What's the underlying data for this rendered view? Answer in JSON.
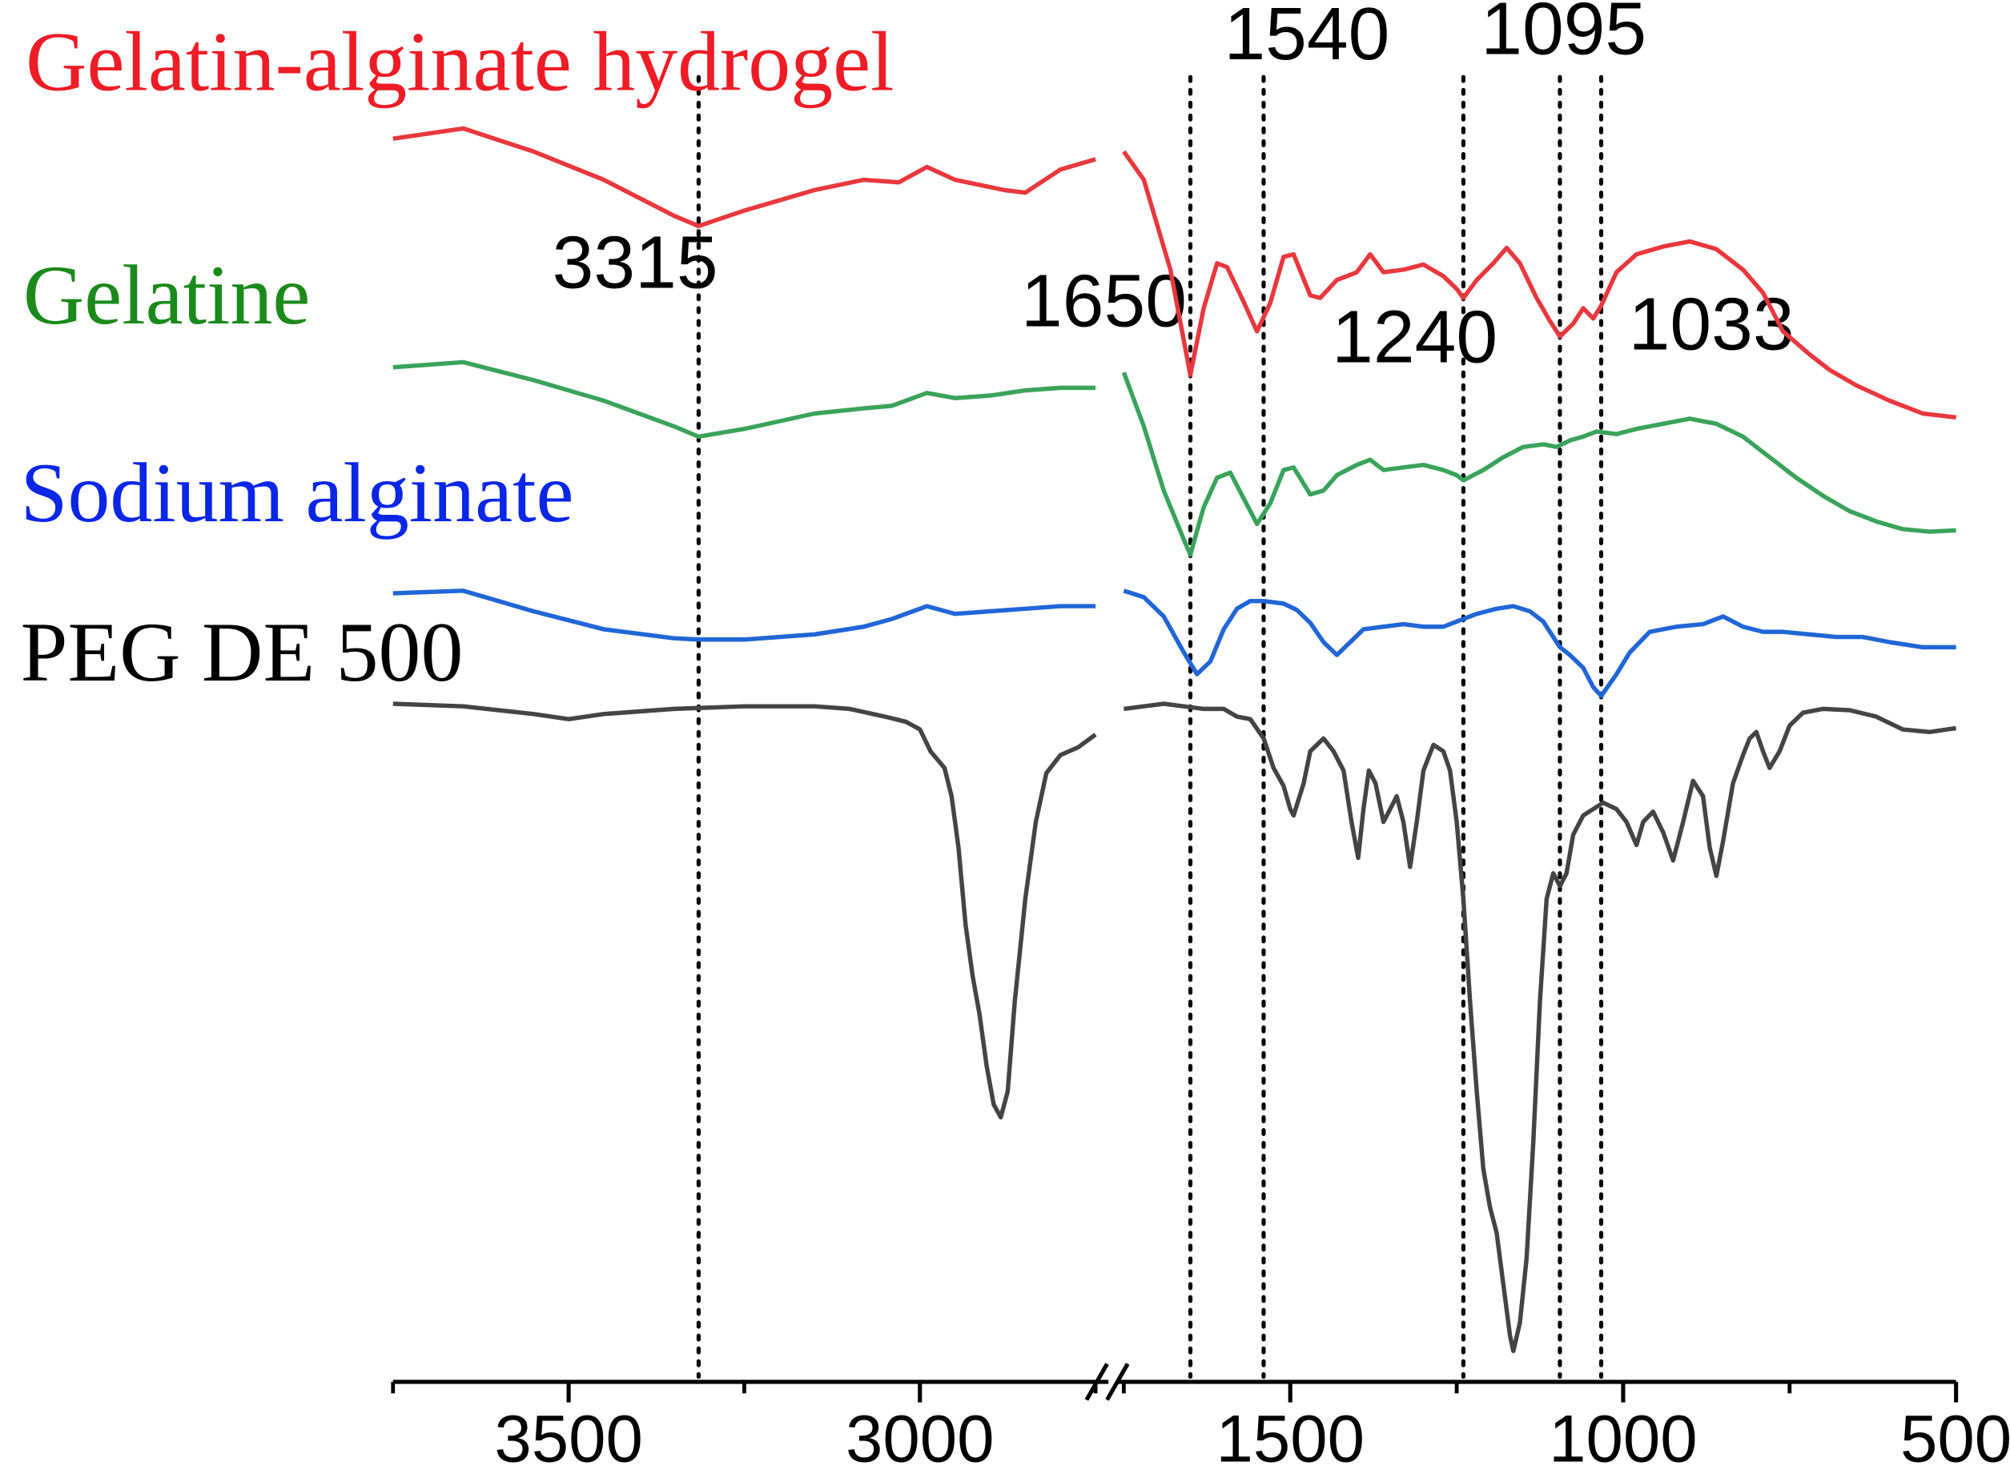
{
  "chart_data": {
    "type": "line",
    "title": "",
    "xlabel": "",
    "ylabel": "",
    "x_axis": {
      "reversed": true,
      "broken": true,
      "segments": [
        [
          3750,
          2750
        ],
        [
          1750,
          500
        ]
      ],
      "ticks": [
        3500,
        3000,
        1500,
        1000,
        500
      ],
      "minor_ticks": [
        3750,
        3250,
        2750,
        1750,
        1250,
        750
      ],
      "tick_labels": [
        "3500",
        "3000",
        "1500",
        "1000",
        "500"
      ]
    },
    "peaks": [
      {
        "x": 3315,
        "label": "3315"
      },
      {
        "x": 1650,
        "label": "1650"
      },
      {
        "x": 1540,
        "label": "1540"
      },
      {
        "x": 1240,
        "label": "1240"
      },
      {
        "x": 1095,
        "label": "1095"
      },
      {
        "x": 1033,
        "label": "1033"
      }
    ],
    "series": [
      {
        "name": "Gelatin-alginate hydrogel",
        "color": "#e8383d",
        "label_color": "#ee1c25",
        "points": [
          [
            3750,
            108
          ],
          [
            3650,
            100
          ],
          [
            3550,
            118
          ],
          [
            3450,
            140
          ],
          [
            3350,
            168
          ],
          [
            3315,
            176
          ],
          [
            3250,
            164
          ],
          [
            3150,
            148
          ],
          [
            3080,
            140
          ],
          [
            3030,
            142
          ],
          [
            2990,
            130
          ],
          [
            2950,
            140
          ],
          [
            2880,
            148
          ],
          [
            2850,
            150
          ],
          [
            2800,
            132
          ],
          [
            2750,
            124
          ],
          [
            1750,
            118
          ],
          [
            1720,
            140
          ],
          [
            1680,
            210
          ],
          [
            1660,
            265
          ],
          [
            1650,
            292
          ],
          [
            1630,
            240
          ],
          [
            1610,
            205
          ],
          [
            1595,
            208
          ],
          [
            1570,
            235
          ],
          [
            1550,
            258
          ],
          [
            1530,
            236
          ],
          [
            1510,
            200
          ],
          [
            1495,
            198
          ],
          [
            1470,
            230
          ],
          [
            1455,
            232
          ],
          [
            1430,
            218
          ],
          [
            1400,
            212
          ],
          [
            1380,
            198
          ],
          [
            1360,
            212
          ],
          [
            1330,
            210
          ],
          [
            1300,
            206
          ],
          [
            1270,
            215
          ],
          [
            1250,
            225
          ],
          [
            1240,
            232
          ],
          [
            1220,
            218
          ],
          [
            1195,
            205
          ],
          [
            1175,
            193
          ],
          [
            1155,
            205
          ],
          [
            1130,
            232
          ],
          [
            1110,
            250
          ],
          [
            1095,
            262
          ],
          [
            1075,
            252
          ],
          [
            1060,
            240
          ],
          [
            1045,
            248
          ],
          [
            1033,
            238
          ],
          [
            1010,
            212
          ],
          [
            980,
            198
          ],
          [
            940,
            192
          ],
          [
            900,
            188
          ],
          [
            860,
            194
          ],
          [
            820,
            210
          ],
          [
            790,
            228
          ],
          [
            760,
            258
          ],
          [
            720,
            276
          ],
          [
            690,
            288
          ],
          [
            650,
            300
          ],
          [
            600,
            312
          ],
          [
            550,
            322
          ],
          [
            500,
            325
          ]
        ]
      },
      {
        "name": "Gelatine",
        "color": "#3aa35b",
        "label_color": "#1a8a1a",
        "points": [
          [
            3750,
            286
          ],
          [
            3650,
            282
          ],
          [
            3550,
            296
          ],
          [
            3450,
            312
          ],
          [
            3350,
            332
          ],
          [
            3315,
            340
          ],
          [
            3250,
            334
          ],
          [
            3150,
            322
          ],
          [
            3080,
            318
          ],
          [
            3040,
            316
          ],
          [
            2990,
            306
          ],
          [
            2950,
            310
          ],
          [
            2900,
            308
          ],
          [
            2850,
            304
          ],
          [
            2800,
            302
          ],
          [
            2750,
            302
          ],
          [
            1750,
            290
          ],
          [
            1720,
            332
          ],
          [
            1690,
            382
          ],
          [
            1660,
            420
          ],
          [
            1650,
            432
          ],
          [
            1630,
            395
          ],
          [
            1610,
            372
          ],
          [
            1590,
            368
          ],
          [
            1570,
            388
          ],
          [
            1550,
            408
          ],
          [
            1530,
            392
          ],
          [
            1510,
            366
          ],
          [
            1495,
            364
          ],
          [
            1470,
            385
          ],
          [
            1450,
            382
          ],
          [
            1430,
            370
          ],
          [
            1400,
            362
          ],
          [
            1380,
            358
          ],
          [
            1360,
            366
          ],
          [
            1330,
            364
          ],
          [
            1300,
            362
          ],
          [
            1270,
            366
          ],
          [
            1250,
            370
          ],
          [
            1240,
            374
          ],
          [
            1210,
            366
          ],
          [
            1180,
            356
          ],
          [
            1150,
            348
          ],
          [
            1120,
            346
          ],
          [
            1100,
            348
          ],
          [
            1080,
            343
          ],
          [
            1060,
            340
          ],
          [
            1040,
            336
          ],
          [
            1010,
            338
          ],
          [
            980,
            334
          ],
          [
            940,
            330
          ],
          [
            900,
            326
          ],
          [
            860,
            330
          ],
          [
            820,
            340
          ],
          [
            780,
            356
          ],
          [
            740,
            372
          ],
          [
            700,
            386
          ],
          [
            660,
            398
          ],
          [
            620,
            406
          ],
          [
            580,
            412
          ],
          [
            540,
            414
          ],
          [
            500,
            413
          ]
        ]
      },
      {
        "name": "Sodium alginate",
        "color": "#2066d6",
        "label_color": "#0a26e6",
        "points": [
          [
            3750,
            462
          ],
          [
            3650,
            460
          ],
          [
            3550,
            476
          ],
          [
            3450,
            490
          ],
          [
            3350,
            497
          ],
          [
            3315,
            498
          ],
          [
            3250,
            498
          ],
          [
            3150,
            494
          ],
          [
            3080,
            488
          ],
          [
            3040,
            482
          ],
          [
            3000,
            474
          ],
          [
            2990,
            472
          ],
          [
            2950,
            478
          ],
          [
            2900,
            476
          ],
          [
            2850,
            474
          ],
          [
            2800,
            472
          ],
          [
            2750,
            472
          ],
          [
            1750,
            460
          ],
          [
            1720,
            465
          ],
          [
            1690,
            480
          ],
          [
            1660,
            508
          ],
          [
            1640,
            525
          ],
          [
            1620,
            515
          ],
          [
            1600,
            490
          ],
          [
            1580,
            474
          ],
          [
            1560,
            468
          ],
          [
            1540,
            468
          ],
          [
            1510,
            470
          ],
          [
            1490,
            475
          ],
          [
            1470,
            485
          ],
          [
            1450,
            500
          ],
          [
            1430,
            510
          ],
          [
            1410,
            500
          ],
          [
            1390,
            490
          ],
          [
            1360,
            488
          ],
          [
            1330,
            486
          ],
          [
            1300,
            488
          ],
          [
            1270,
            488
          ],
          [
            1250,
            484
          ],
          [
            1220,
            478
          ],
          [
            1190,
            474
          ],
          [
            1165,
            472
          ],
          [
            1140,
            476
          ],
          [
            1120,
            484
          ],
          [
            1105,
            496
          ],
          [
            1095,
            504
          ],
          [
            1080,
            510
          ],
          [
            1060,
            520
          ],
          [
            1045,
            535
          ],
          [
            1033,
            542
          ],
          [
            1010,
            525
          ],
          [
            990,
            508
          ],
          [
            960,
            492
          ],
          [
            920,
            488
          ],
          [
            880,
            486
          ],
          [
            850,
            480
          ],
          [
            820,
            488
          ],
          [
            790,
            492
          ],
          [
            760,
            492
          ],
          [
            720,
            494
          ],
          [
            680,
            496
          ],
          [
            640,
            496
          ],
          [
            600,
            500
          ],
          [
            550,
            504
          ],
          [
            500,
            504
          ]
        ]
      },
      {
        "name": "PEG DE 500",
        "color": "#444444",
        "label_color": "#000000",
        "points": [
          [
            3750,
            548
          ],
          [
            3650,
            550
          ],
          [
            3550,
            556
          ],
          [
            3500,
            560
          ],
          [
            3450,
            556
          ],
          [
            3350,
            552
          ],
          [
            3250,
            550
          ],
          [
            3150,
            550
          ],
          [
            3100,
            552
          ],
          [
            3050,
            558
          ],
          [
            3020,
            562
          ],
          [
            3000,
            568
          ],
          [
            2985,
            585
          ],
          [
            2965,
            598
          ],
          [
            2955,
            620
          ],
          [
            2945,
            660
          ],
          [
            2935,
            720
          ],
          [
            2925,
            760
          ],
          [
            2915,
            790
          ],
          [
            2905,
            830
          ],
          [
            2895,
            860
          ],
          [
            2885,
            870
          ],
          [
            2875,
            850
          ],
          [
            2865,
            780
          ],
          [
            2850,
            700
          ],
          [
            2835,
            640
          ],
          [
            2820,
            602
          ],
          [
            2800,
            588
          ],
          [
            2775,
            582
          ],
          [
            2750,
            572
          ],
          [
            1750,
            552
          ],
          [
            1720,
            550
          ],
          [
            1690,
            548
          ],
          [
            1660,
            550
          ],
          [
            1630,
            552
          ],
          [
            1600,
            552
          ],
          [
            1580,
            558
          ],
          [
            1560,
            560
          ],
          [
            1540,
            575
          ],
          [
            1525,
            598
          ],
          [
            1510,
            612
          ],
          [
            1500,
            630
          ],
          [
            1495,
            635
          ],
          [
            1480,
            610
          ],
          [
            1470,
            585
          ],
          [
            1450,
            575
          ],
          [
            1435,
            585
          ],
          [
            1420,
            600
          ],
          [
            1408,
            640
          ],
          [
            1398,
            668
          ],
          [
            1390,
            630
          ],
          [
            1382,
            600
          ],
          [
            1372,
            610
          ],
          [
            1360,
            640
          ],
          [
            1350,
            630
          ],
          [
            1340,
            620
          ],
          [
            1330,
            640
          ],
          [
            1320,
            675
          ],
          [
            1310,
            640
          ],
          [
            1300,
            600
          ],
          [
            1285,
            580
          ],
          [
            1270,
            585
          ],
          [
            1260,
            600
          ],
          [
            1250,
            640
          ],
          [
            1240,
            700
          ],
          [
            1230,
            780
          ],
          [
            1220,
            850
          ],
          [
            1210,
            910
          ],
          [
            1200,
            940
          ],
          [
            1190,
            960
          ],
          [
            1180,
            1000
          ],
          [
            1170,
            1040
          ],
          [
            1165,
            1052
          ],
          [
            1155,
            1030
          ],
          [
            1145,
            980
          ],
          [
            1135,
            890
          ],
          [
            1125,
            780
          ],
          [
            1115,
            700
          ],
          [
            1105,
            680
          ],
          [
            1095,
            690
          ],
          [
            1085,
            680
          ],
          [
            1075,
            650
          ],
          [
            1060,
            635
          ],
          [
            1045,
            630
          ],
          [
            1030,
            625
          ],
          [
            1010,
            630
          ],
          [
            995,
            640
          ],
          [
            980,
            658
          ],
          [
            970,
            640
          ],
          [
            955,
            632
          ],
          [
            940,
            648
          ],
          [
            925,
            670
          ],
          [
            910,
            640
          ],
          [
            895,
            608
          ],
          [
            880,
            620
          ],
          [
            870,
            660
          ],
          [
            860,
            682
          ],
          [
            850,
            655
          ],
          [
            835,
            610
          ],
          [
            820,
            588
          ],
          [
            810,
            575
          ],
          [
            800,
            570
          ],
          [
            790,
            585
          ],
          [
            780,
            598
          ],
          [
            765,
            585
          ],
          [
            750,
            565
          ],
          [
            730,
            555
          ],
          [
            700,
            552
          ],
          [
            660,
            553
          ],
          [
            620,
            558
          ],
          [
            580,
            568
          ],
          [
            540,
            570
          ],
          [
            500,
            567
          ]
        ]
      }
    ]
  }
}
